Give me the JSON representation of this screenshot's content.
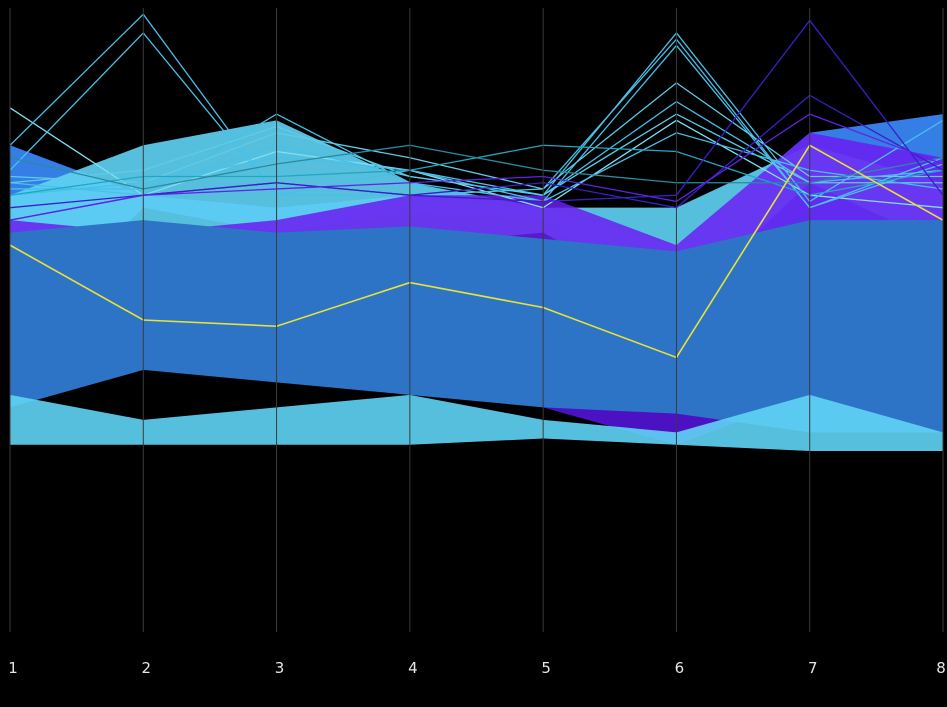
{
  "chart_data": {
    "type": "parallel-coordinates",
    "axes": [
      "1",
      "2",
      "3",
      "4",
      "5",
      "6",
      "7",
      "8"
    ],
    "ylim": [
      0,
      1
    ],
    "background": "#000000",
    "axis_color": "#3a3a3a",
    "label_color": "#e6e6e6",
    "grid": false,
    "legend": "none",
    "bands": [
      {
        "name": "",
        "color": "#3a8cff",
        "low": [
          0.47,
          0.68,
          0.64,
          0.67,
          0.66,
          0.49,
          0.66,
          0.6
        ],
        "high": [
          0.78,
          0.7,
          0.68,
          0.7,
          0.68,
          0.62,
          0.8,
          0.83
        ],
        "opacity": 0.9
      },
      {
        "name": "",
        "color": "#5fd4f5",
        "low": [
          0.62,
          0.66,
          0.58,
          0.62,
          0.64,
          0.52,
          0.72,
          0.62
        ],
        "high": [
          0.7,
          0.78,
          0.82,
          0.72,
          0.68,
          0.68,
          0.78,
          0.72
        ],
        "opacity": 0.9
      },
      {
        "name": "",
        "color": "#6a1df0",
        "low": [
          0.58,
          0.6,
          0.58,
          0.6,
          0.62,
          0.56,
          0.6,
          0.62
        ],
        "high": [
          0.66,
          0.64,
          0.66,
          0.7,
          0.7,
          0.62,
          0.8,
          0.76
        ],
        "opacity": 0.85
      },
      {
        "name": "",
        "color": "#5a14e6",
        "low": [
          0.38,
          0.42,
          0.42,
          0.4,
          0.36,
          0.3,
          0.38,
          0.38
        ],
        "high": [
          0.46,
          0.48,
          0.46,
          0.44,
          0.42,
          0.38,
          0.44,
          0.44
        ],
        "opacity": 0.85
      },
      {
        "name": "",
        "color": "#2e74c6",
        "low": [
          0.36,
          0.42,
          0.4,
          0.38,
          0.36,
          0.35,
          0.32,
          0.32
        ],
        "high": [
          0.64,
          0.66,
          0.64,
          0.65,
          0.63,
          0.61,
          0.66,
          0.66
        ],
        "opacity": 1.0
      },
      {
        "name": "",
        "color": "#5fd4f5",
        "low": [
          0.3,
          0.3,
          0.3,
          0.3,
          0.31,
          0.3,
          0.29,
          0.29
        ],
        "high": [
          0.38,
          0.34,
          0.36,
          0.38,
          0.34,
          0.32,
          0.38,
          0.32
        ],
        "opacity": 0.9
      }
    ],
    "lines": [
      {
        "name": "",
        "color": "#7fe0f5",
        "values": [
          0.84,
          0.7,
          0.77,
          0.74,
          0.68,
          0.82,
          0.7,
          0.68
        ]
      },
      {
        "name": "",
        "color": "#48c0e8",
        "values": [
          0.78,
          0.99,
          0.7,
          0.74,
          0.7,
          0.96,
          0.69,
          0.82
        ]
      },
      {
        "name": "",
        "color": "#48c0e8",
        "values": [
          0.74,
          0.96,
          0.7,
          0.7,
          0.71,
          0.95,
          0.68,
          0.76
        ]
      },
      {
        "name": "",
        "color": "#48c0e8",
        "values": [
          0.72,
          0.7,
          0.83,
          0.72,
          0.69,
          0.94,
          0.68,
          0.75
        ]
      },
      {
        "name": "",
        "color": "#5ecbe8",
        "values": [
          0.73,
          0.72,
          0.8,
          0.76,
          0.71,
          0.88,
          0.73,
          0.73
        ]
      },
      {
        "name": "",
        "color": "#48c0e8",
        "values": [
          0.71,
          0.71,
          0.78,
          0.73,
          0.7,
          0.85,
          0.72,
          0.74
        ]
      },
      {
        "name": "",
        "color": "#5ecbe8",
        "values": [
          0.72,
          0.74,
          0.81,
          0.73,
          0.7,
          0.83,
          0.72,
          0.72
        ]
      },
      {
        "name": "",
        "color": "#48c0e8",
        "values": [
          0.7,
          0.72,
          0.76,
          0.74,
          0.69,
          0.8,
          0.74,
          0.71
        ]
      },
      {
        "name": "",
        "color": "#22a7c0",
        "values": [
          0.7,
          0.73,
          0.73,
          0.74,
          0.78,
          0.77,
          0.7,
          0.74
        ]
      },
      {
        "name": "",
        "color": "#2a8aa0",
        "values": [
          0.76,
          0.71,
          0.75,
          0.78,
          0.74,
          0.72,
          0.72,
          0.76
        ]
      },
      {
        "name": "",
        "color": "#3b1ec8",
        "values": [
          0.66,
          0.7,
          0.72,
          0.7,
          0.69,
          0.7,
          0.98,
          0.7
        ]
      },
      {
        "name": "",
        "color": "#3b1ec8",
        "values": [
          0.68,
          0.7,
          0.72,
          0.7,
          0.72,
          0.68,
          0.86,
          0.74
        ]
      },
      {
        "name": "",
        "color": "#6222e6",
        "values": [
          0.66,
          0.7,
          0.71,
          0.72,
          0.73,
          0.69,
          0.83,
          0.75
        ]
      },
      {
        "name": "",
        "color": "#e7e23a",
        "values": [
          0.62,
          0.5,
          0.49,
          0.56,
          0.52,
          0.44,
          0.78,
          0.66
        ]
      }
    ]
  }
}
